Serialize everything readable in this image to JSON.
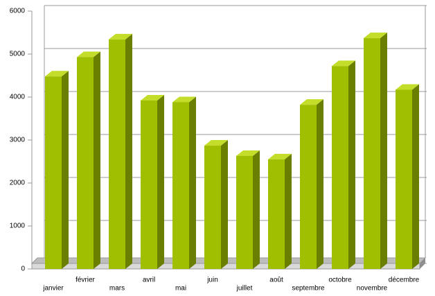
{
  "chart_data": {
    "type": "bar",
    "categories": [
      "janvier",
      "février",
      "mars",
      "avril",
      "mai",
      "juin",
      "juillet",
      "août",
      "septembre",
      "octobre",
      "novembre",
      "décembre"
    ],
    "values": [
      4480,
      4930,
      5340,
      3920,
      3880,
      2870,
      2630,
      2550,
      3820,
      4720,
      5370,
      4170
    ],
    "color": "#a0bf00",
    "ylim": [
      0,
      6000
    ],
    "yticks": [
      0,
      1000,
      2000,
      3000,
      4000,
      5000,
      6000
    ],
    "grid": true
  }
}
